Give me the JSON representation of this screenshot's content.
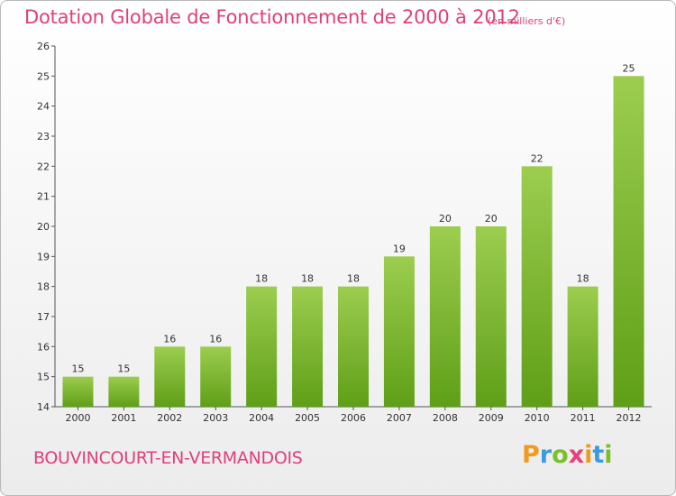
{
  "header": {
    "title": "Dotation Globale de Fonctionnement de 2000 à 2012",
    "subtitle": "(en milliers d'€)"
  },
  "footer": {
    "commune": "BOUVINCOURT-EN-VERMANDOIS",
    "logo_letters": [
      "P",
      "r",
      "o",
      "x",
      "i",
      "t",
      "i"
    ],
    "logo_colors": [
      "#f29a1d",
      "#3c9be0",
      "#7bbf2a",
      "#e8417a",
      "#f29a1d",
      "#3c9be0",
      "#7bbf2a"
    ]
  },
  "colors": {
    "bar_top": "#9ccd4f",
    "bar_bottom": "#5f9f17",
    "axis": "#555555",
    "text": "#333333",
    "grid": "#888888",
    "accent": "#e0407a"
  },
  "chart_data": {
    "type": "bar",
    "categories": [
      "2000",
      "2001",
      "2002",
      "2003",
      "2004",
      "2005",
      "2006",
      "2007",
      "2008",
      "2009",
      "2010",
      "2011",
      "2012"
    ],
    "values": [
      15,
      15,
      16,
      16,
      18,
      18,
      18,
      19,
      20,
      20,
      22,
      18,
      25
    ],
    "yticks": [
      14,
      15,
      16,
      17,
      18,
      19,
      20,
      21,
      22,
      23,
      24,
      25,
      26
    ],
    "ylim": [
      14,
      26
    ],
    "grid": false,
    "legend": "none"
  }
}
